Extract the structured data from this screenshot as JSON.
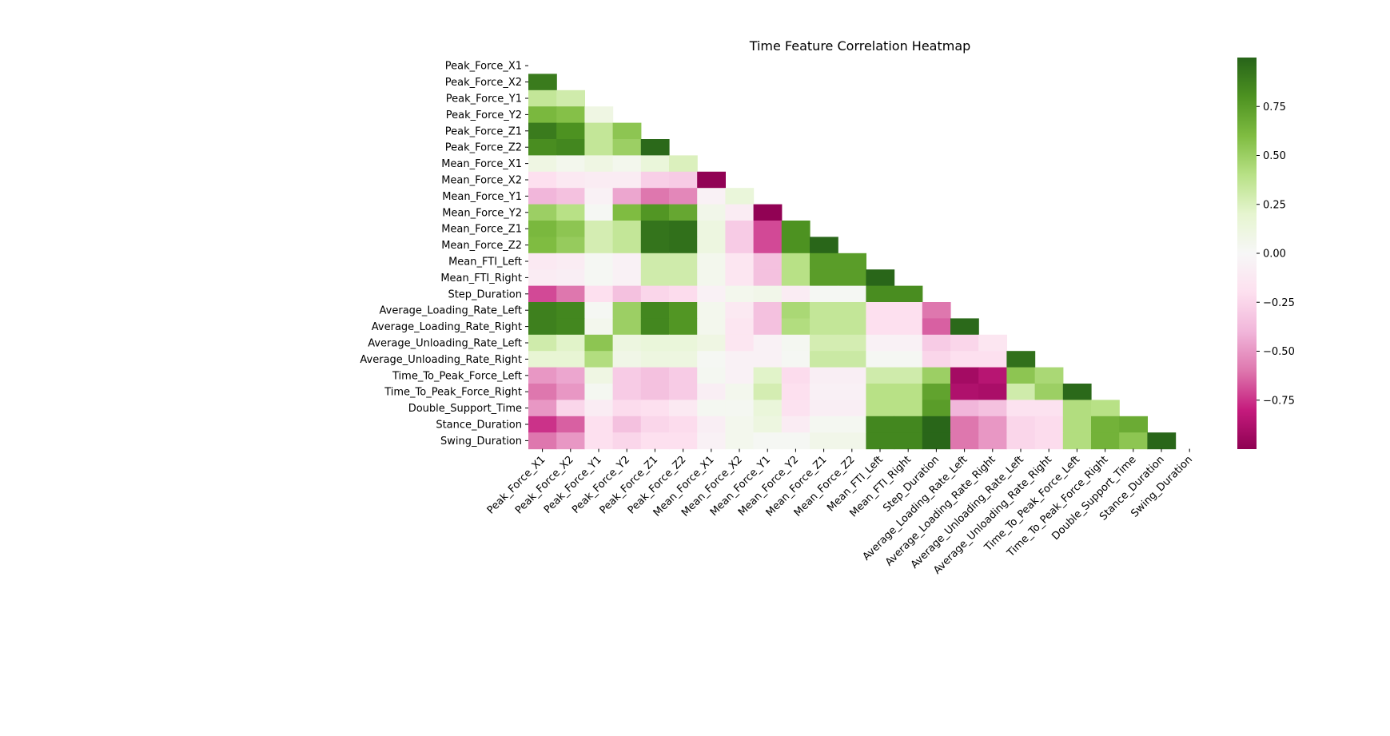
{
  "chart_data": {
    "type": "heatmap",
    "title": "Time Feature Correlation Heatmap",
    "xlabel": "",
    "ylabel": "",
    "mask": "upper-triangle-including-diagonal",
    "labels": [
      "Peak_Force_X1",
      "Peak_Force_X2",
      "Peak_Force_Y1",
      "Peak_Force_Y2",
      "Peak_Force_Z1",
      "Peak_Force_Z2",
      "Mean_Force_X1",
      "Mean_Force_X2",
      "Mean_Force_Y1",
      "Mean_Force_Y2",
      "Mean_Force_Z1",
      "Mean_Force_Z2",
      "Mean_FTI_Left",
      "Mean_FTI_Right",
      "Step_Duration",
      "Average_Loading_Rate_Left",
      "Average_Loading_Rate_Right",
      "Average_Unloading_Rate_Left",
      "Average_Unloading_Rate_Right",
      "Time_To_Peak_Force_Left",
      "Time_To_Peak_Force_Right",
      "Double_Support_Time",
      "Stance_Duration",
      "Swing_Duration"
    ],
    "values": [
      [],
      [
        0.9
      ],
      [
        0.35,
        0.3
      ],
      [
        0.62,
        0.58,
        0.1
      ],
      [
        0.9,
        0.8,
        0.35,
        0.55
      ],
      [
        0.82,
        0.85,
        0.35,
        0.5,
        0.98
      ],
      [
        0.1,
        0.05,
        0.1,
        0.05,
        0.15,
        0.25
      ],
      [
        -0.2,
        -0.12,
        -0.1,
        -0.1,
        -0.28,
        -0.3,
        -0.99
      ],
      [
        -0.4,
        -0.35,
        -0.05,
        -0.45,
        -0.6,
        -0.55,
        -0.05,
        0.15
      ],
      [
        0.5,
        0.4,
        0.02,
        0.6,
        0.78,
        0.7,
        0.07,
        -0.1,
        -0.99
      ],
      [
        0.62,
        0.55,
        0.28,
        0.35,
        0.93,
        0.95,
        0.12,
        -0.3,
        -0.7,
        0.8
      ],
      [
        0.6,
        0.52,
        0.28,
        0.35,
        0.93,
        0.95,
        0.12,
        -0.3,
        -0.7,
        0.8,
        0.99
      ],
      [
        -0.12,
        -0.1,
        0.02,
        -0.05,
        0.3,
        0.3,
        0.05,
        -0.15,
        -0.35,
        0.4,
        0.75,
        0.75
      ],
      [
        -0.1,
        -0.08,
        0.02,
        -0.05,
        0.3,
        0.3,
        0.05,
        -0.15,
        -0.35,
        0.4,
        0.75,
        0.75,
        0.99
      ],
      [
        -0.7,
        -0.6,
        -0.2,
        -0.35,
        -0.25,
        -0.22,
        -0.05,
        0.05,
        0.07,
        -0.1,
        0.02,
        0.02,
        0.82,
        0.82
      ],
      [
        0.88,
        0.85,
        0.02,
        0.5,
        0.85,
        0.78,
        0.05,
        -0.12,
        -0.35,
        0.45,
        0.35,
        0.35,
        -0.2,
        -0.2,
        -0.6
      ],
      [
        0.88,
        0.85,
        0.05,
        0.5,
        0.85,
        0.78,
        0.05,
        -0.15,
        -0.35,
        0.42,
        0.35,
        0.35,
        -0.2,
        -0.2,
        -0.65,
        0.98
      ],
      [
        0.3,
        0.22,
        0.55,
        0.12,
        0.15,
        0.15,
        0.1,
        -0.15,
        -0.05,
        0.03,
        0.28,
        0.28,
        -0.05,
        -0.05,
        -0.3,
        -0.25,
        -0.15
      ],
      [
        0.18,
        0.18,
        0.42,
        0.08,
        0.12,
        0.12,
        0.02,
        -0.05,
        -0.05,
        0.02,
        0.32,
        0.32,
        0.02,
        0.02,
        -0.25,
        -0.2,
        -0.2,
        0.95
      ],
      [
        -0.5,
        -0.45,
        0.1,
        -0.3,
        -0.35,
        -0.3,
        0.03,
        -0.05,
        0.22,
        -0.22,
        -0.08,
        -0.08,
        0.3,
        0.3,
        0.5,
        -0.92,
        -0.85,
        0.55,
        0.45
      ],
      [
        -0.6,
        -0.5,
        0.03,
        -0.3,
        -0.35,
        -0.3,
        -0.08,
        0.05,
        0.28,
        -0.2,
        -0.06,
        -0.06,
        0.4,
        0.4,
        0.72,
        -0.88,
        -0.9,
        0.3,
        0.5,
        0.98
      ],
      [
        -0.5,
        -0.25,
        -0.1,
        -0.22,
        -0.2,
        -0.12,
        0.03,
        0.03,
        0.15,
        -0.18,
        -0.08,
        -0.08,
        0.4,
        0.4,
        0.75,
        -0.4,
        -0.35,
        -0.18,
        -0.18,
        0.42,
        0.4
      ],
      [
        -0.75,
        -0.65,
        -0.2,
        -0.35,
        -0.25,
        -0.22,
        -0.08,
        0.05,
        0.12,
        -0.1,
        0.03,
        0.03,
        0.85,
        0.85,
        0.99,
        -0.6,
        -0.5,
        -0.25,
        -0.22,
        0.42,
        0.65,
        0.68
      ],
      [
        -0.6,
        -0.5,
        -0.2,
        -0.25,
        -0.2,
        -0.2,
        -0.05,
        0.05,
        0.02,
        0.02,
        0.07,
        0.07,
        0.85,
        0.85,
        0.99,
        -0.6,
        -0.5,
        -0.25,
        -0.22,
        0.42,
        0.65,
        0.55,
        0.99
      ]
    ],
    "colormap": "PiYG",
    "vmin": -1.0,
    "vmax": 1.0,
    "colorbar": {
      "ticks": [
        0.75,
        0.5,
        0.25,
        0.0,
        -0.25,
        -0.5,
        -0.75
      ],
      "tick_labels": [
        "0.75",
        "0.50",
        "0.25",
        "0.00",
        "−0.25",
        "−0.50",
        "−0.75"
      ],
      "range": [
        -1.0,
        1.0
      ]
    }
  }
}
